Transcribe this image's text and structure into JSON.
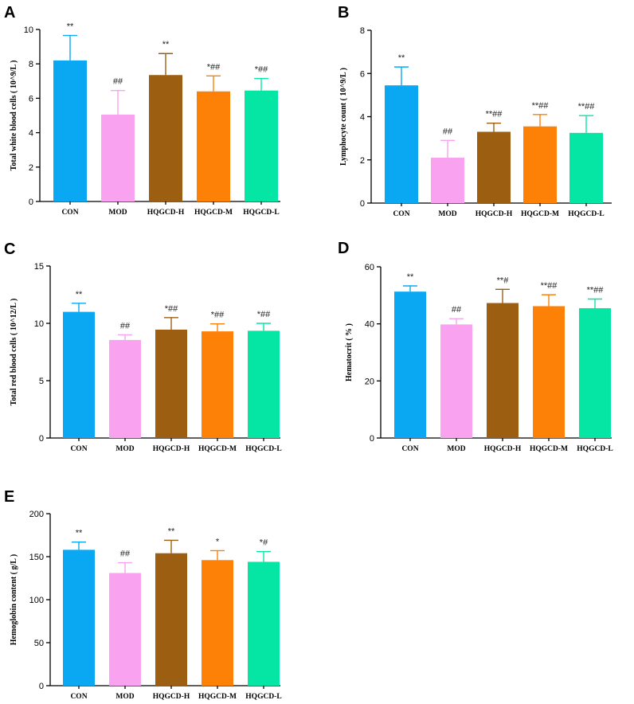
{
  "colors": {
    "CON": "#0aa8f2",
    "MOD": "#f8a2f0",
    "HQGCD-H": "#9c5f11",
    "HQGCD-M": "#fd8007",
    "HQGCD-L": "#05e6a5"
  },
  "chart_data": [
    {
      "id": "A",
      "panel_label": "A",
      "type": "bar",
      "ylabel": "Total white blood cells ( 10^9/L )",
      "ylim": [
        0,
        10
      ],
      "yticks": [
        0,
        2,
        4,
        6,
        8,
        10
      ],
      "categories": [
        "CON",
        "MOD",
        "HQGCD-H",
        "HQGCD-M",
        "HQGCD-L"
      ],
      "values": [
        8.2,
        5.05,
        7.35,
        6.4,
        6.45
      ],
      "errors": [
        1.45,
        1.4,
        1.25,
        0.9,
        0.7
      ],
      "annotations": [
        "**",
        "##",
        "**",
        "*##",
        "*##"
      ]
    },
    {
      "id": "B",
      "panel_label": "B",
      "type": "bar",
      "ylabel": "Lymphocyte count ( 10^9/L )",
      "ylim": [
        0,
        8
      ],
      "yticks": [
        0,
        2,
        4,
        6,
        8
      ],
      "categories": [
        "CON",
        "MOD",
        "HQGCD-H",
        "HQGCD-M",
        "HQGCD-L"
      ],
      "values": [
        5.45,
        2.1,
        3.3,
        3.55,
        3.25
      ],
      "errors": [
        0.85,
        0.8,
        0.4,
        0.55,
        0.8
      ],
      "annotations": [
        "**",
        "##",
        "**##",
        "**##",
        "**##"
      ]
    },
    {
      "id": "C",
      "panel_label": "C",
      "type": "bar",
      "ylabel": "Total red blood cells ( 10^12/L )",
      "ylim": [
        0,
        15
      ],
      "yticks": [
        0,
        5,
        10,
        15
      ],
      "categories": [
        "CON",
        "MOD",
        "HQGCD-H",
        "HQGCD-M",
        "HQGCD-L"
      ],
      "values": [
        11.0,
        8.55,
        9.45,
        9.3,
        9.35
      ],
      "errors": [
        0.75,
        0.45,
        1.05,
        0.65,
        0.65
      ],
      "annotations": [
        "**",
        "##",
        "*##",
        "*##",
        "*##"
      ]
    },
    {
      "id": "D",
      "panel_label": "D",
      "type": "bar",
      "ylabel": "Hematocrit ( % )",
      "ylim": [
        0,
        60
      ],
      "yticks": [
        0,
        20,
        40,
        60
      ],
      "categories": [
        "CON",
        "MOD",
        "HQGCD-H",
        "HQGCD-M",
        "HQGCD-L"
      ],
      "values": [
        51.3,
        39.8,
        47.3,
        46.2,
        45.5
      ],
      "errors": [
        2.0,
        2.0,
        4.8,
        4.0,
        3.2
      ],
      "annotations": [
        "**",
        "##",
        "**#",
        "**##",
        "**##"
      ]
    },
    {
      "id": "E",
      "panel_label": "E",
      "type": "bar",
      "ylabel": "Hemoglobin content ( g/L )",
      "ylim": [
        0,
        200
      ],
      "yticks": [
        0,
        50,
        100,
        150,
        200
      ],
      "categories": [
        "CON",
        "MOD",
        "HQGCD-H",
        "HQGCD-M",
        "HQGCD-L"
      ],
      "values": [
        158,
        131,
        154,
        146,
        144
      ],
      "errors": [
        9,
        12,
        15,
        11,
        12
      ],
      "annotations": [
        "**",
        "##",
        "**",
        "*",
        "*#"
      ]
    }
  ]
}
